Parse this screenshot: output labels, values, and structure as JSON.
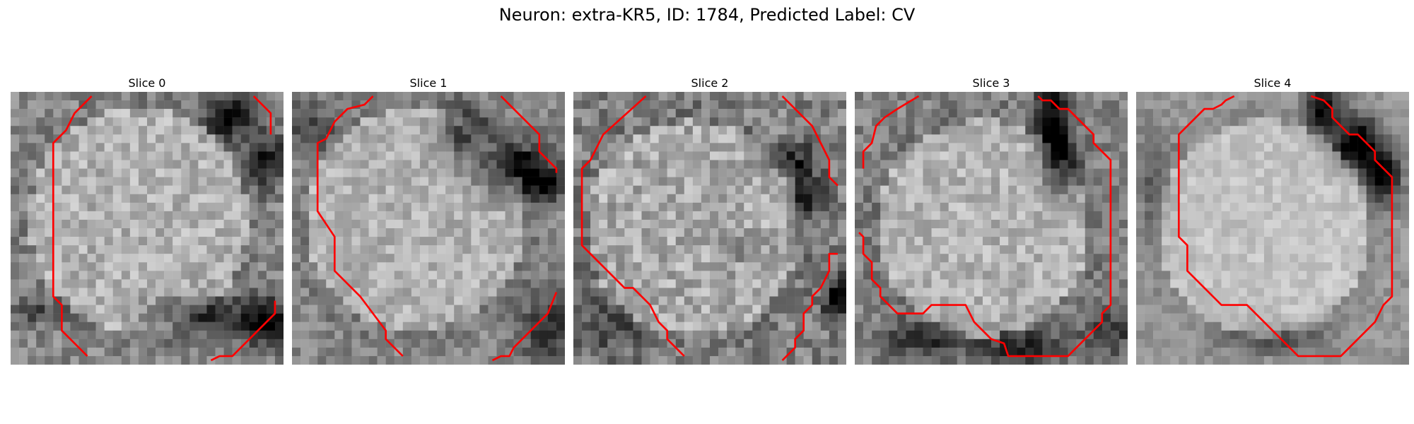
{
  "figure": {
    "title": "Neuron: extra-KR5, ID: 1784, Predicted Label: CV"
  },
  "panels": [
    {
      "title": "Slice 0"
    },
    {
      "title": "Slice 1"
    },
    {
      "title": "Slice 2"
    },
    {
      "title": "Slice 3"
    },
    {
      "title": "Slice 4"
    }
  ],
  "colors": {
    "contour": "#ff0000",
    "background": "#ffffff"
  }
}
